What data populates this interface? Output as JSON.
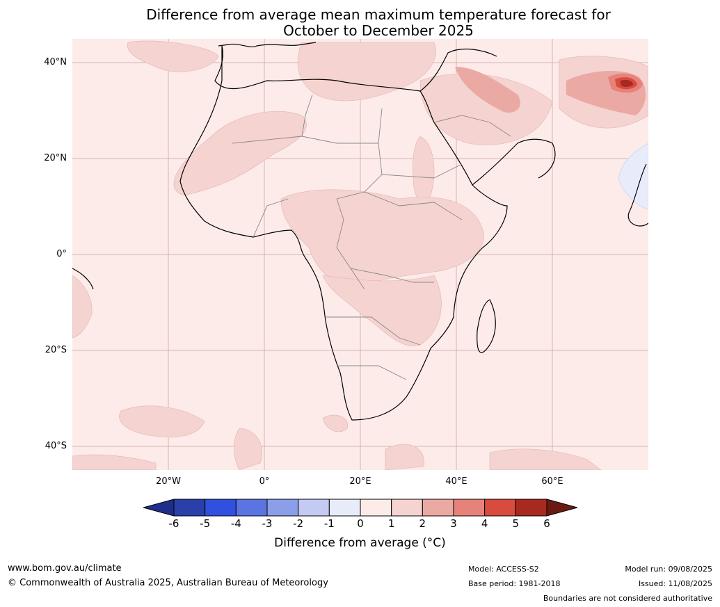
{
  "title_line1": "Difference from average mean maximum temperature forecast for",
  "title_line2": "October to December 2025",
  "lat_labels": [
    "40°N",
    "20°N",
    "0°",
    "20°S",
    "40°S"
  ],
  "lon_labels": [
    "20°W",
    "0°",
    "20°E",
    "40°E",
    "60°E"
  ],
  "colorbar": {
    "ticks": [
      "-6",
      "-5",
      "-4",
      "-3",
      "-2",
      "-1",
      "0",
      "1",
      "2",
      "3",
      "4",
      "5",
      "6"
    ],
    "colors": [
      "#1f2e8a",
      "#2a3fa8",
      "#3150df",
      "#5a75e2",
      "#8a9ee9",
      "#c3cbf2",
      "#e8ebfa",
      "#fcebe9",
      "#f5d3d0",
      "#eba9a3",
      "#e6827a",
      "#d94a3f",
      "#a8291f",
      "#6b1a12"
    ],
    "label": "Difference from average (°C)"
  },
  "footer": {
    "website": "www.bom.gov.au/climate",
    "copyright": "© Commonwealth of Australia 2025, Australian Bureau of Meteorology",
    "model": "Model: ACCESS-S2",
    "base_period": "Base period: 1981-2018",
    "model_run": "Model run: 09/08/2025",
    "issued": "Issued: 11/08/2025",
    "disclaimer": "Boundaries are not considered authoritative"
  }
}
